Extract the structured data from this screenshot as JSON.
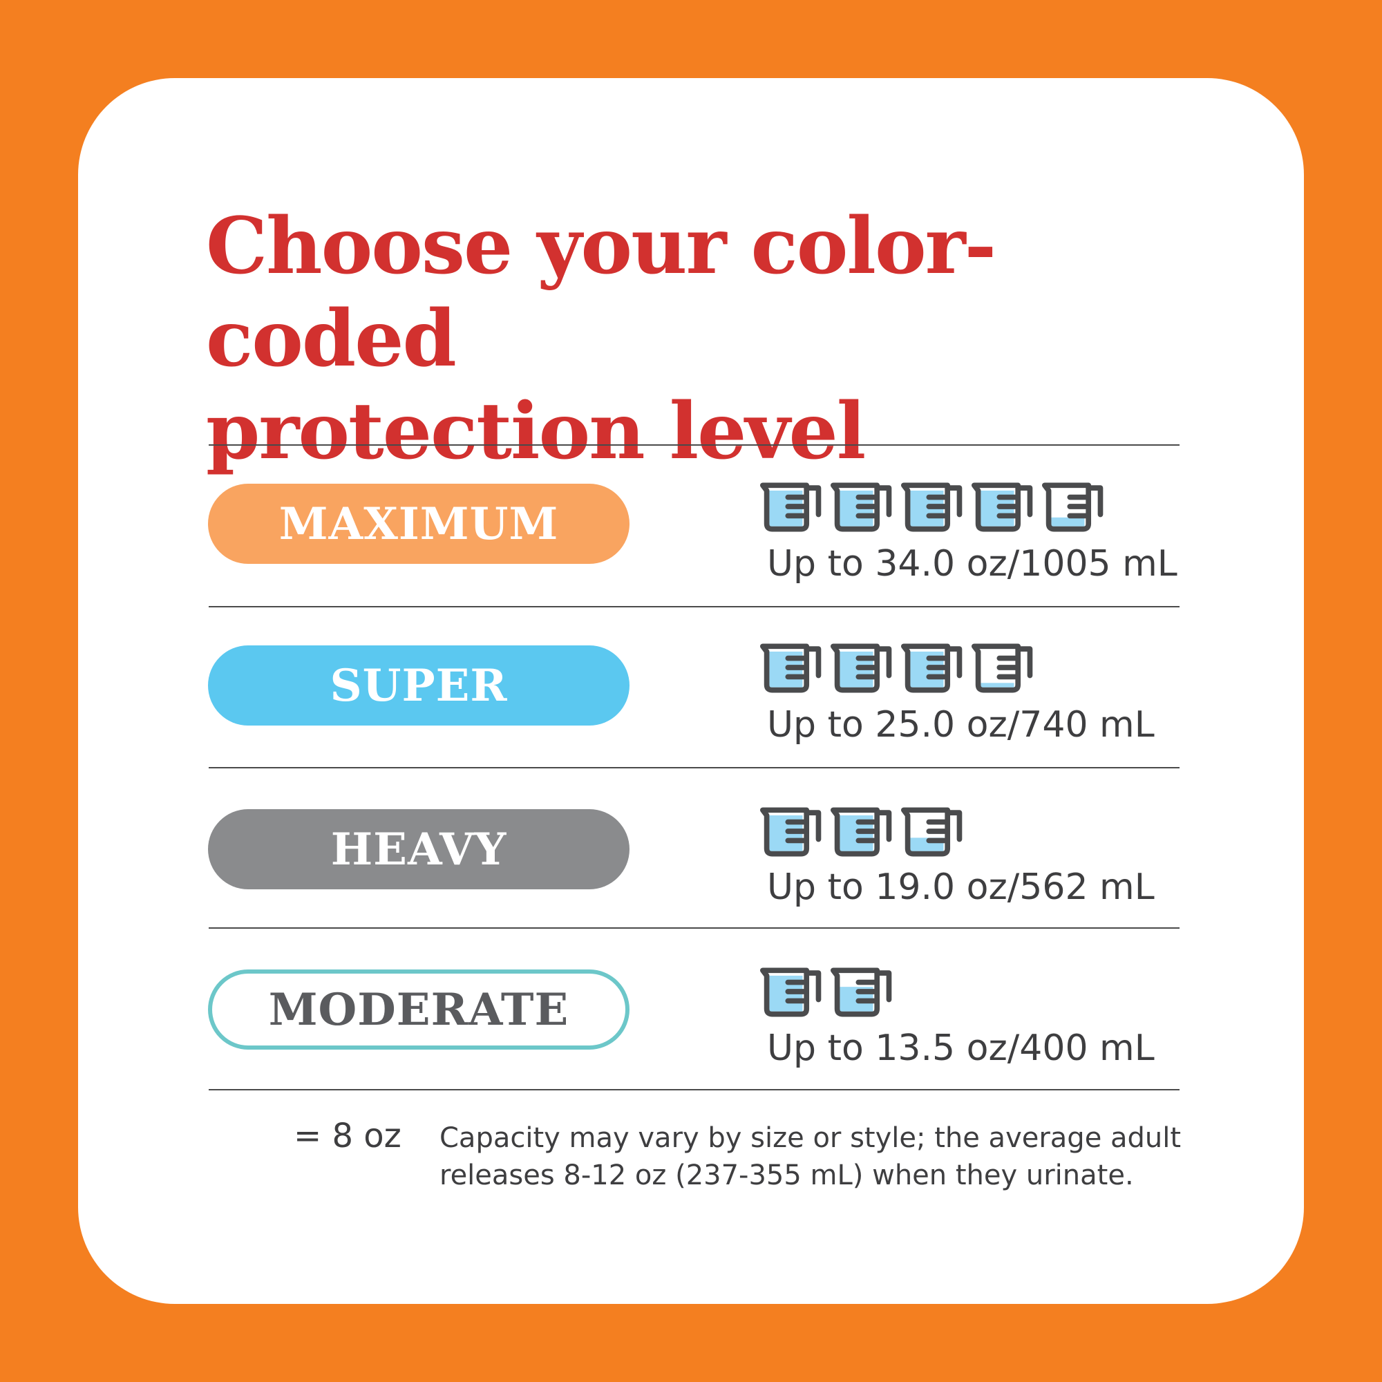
{
  "title_line1": "Choose your color-coded",
  "title_line2": "protection level",
  "colors": {
    "background": "#F47F20",
    "title": "#D2312F",
    "cup_outline": "#4a4b4d",
    "cup_fill": "#9bd9f5"
  },
  "levels": [
    {
      "label": "MAXIMUM",
      "capacity": "Up to 34.0 oz/1005 mL",
      "cups": 4.25,
      "pill_bg": "#F9A460",
      "pill_text": "#ffffff",
      "pill_border": "none"
    },
    {
      "label": "SUPER",
      "capacity": "Up to 25.0 oz/740 mL",
      "cups": 3.125,
      "pill_bg": "#5BC8F0",
      "pill_text": "#ffffff",
      "pill_border": "none"
    },
    {
      "label": "HEAVY",
      "capacity": "Up to 19.0 oz/562 mL",
      "cups": 2.375,
      "pill_bg": "#8A8B8D",
      "pill_text": "#ffffff",
      "pill_border": "none"
    },
    {
      "label": "MODERATE",
      "capacity": "Up to 13.5 oz/400 mL",
      "cups": 1.6875,
      "pill_bg": "#ffffff",
      "pill_text": "#5a5b5e",
      "pill_border": "#6CC7C9"
    }
  ],
  "legend": {
    "text": "= 8 oz",
    "icon": "measuring-cup-icon"
  },
  "note_line1": "Capacity may vary by size or style; the average adult",
  "note_line2": "releases 8-12 oz (237-355 mL) when they urinate."
}
